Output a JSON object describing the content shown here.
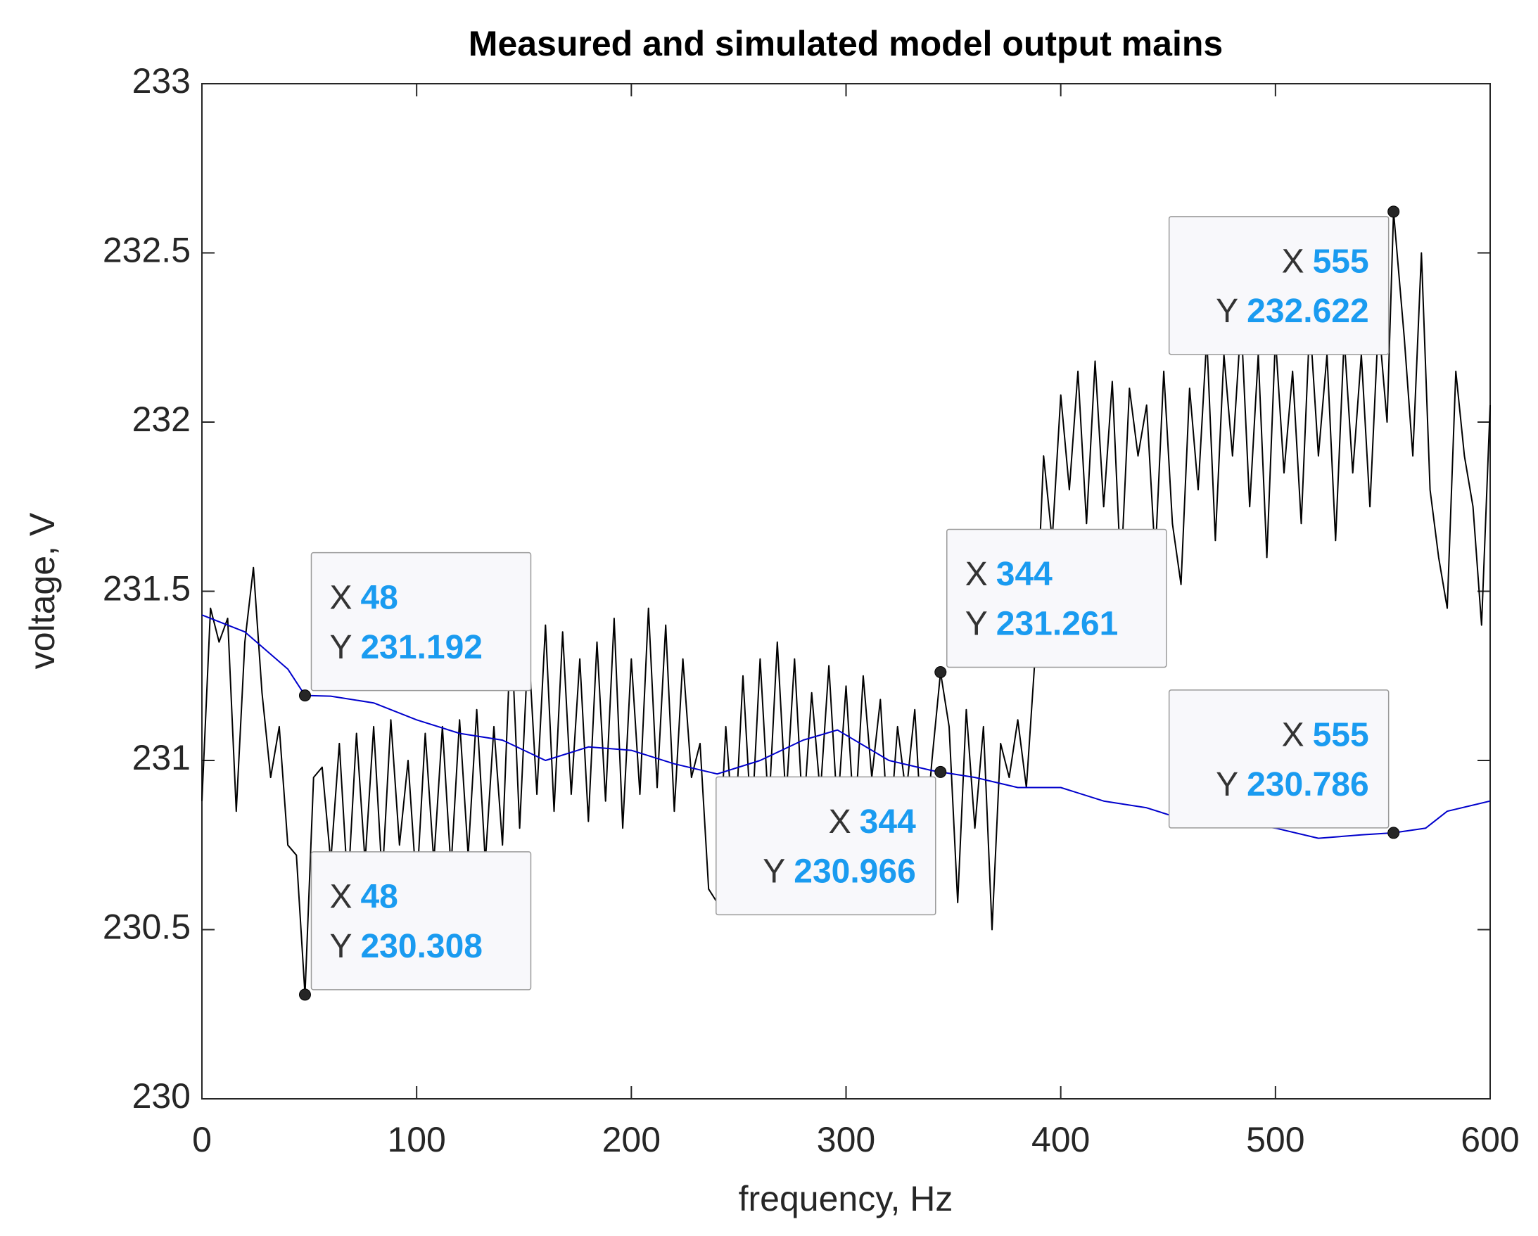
{
  "chart_data": {
    "type": "line",
    "title": "Measured and simulated model output mains",
    "xlabel": "frequency, Hz",
    "ylabel": "voltage, V",
    "xlim": [
      0,
      600
    ],
    "xticks": [
      0,
      100,
      200,
      300,
      400,
      500,
      600
    ],
    "ylim": [
      230,
      233
    ],
    "yticks": [
      230,
      230.5,
      231,
      231.5,
      232,
      232.5,
      233
    ],
    "grid": false,
    "series": [
      {
        "color": "#000000",
        "x": [
          0,
          4,
          8,
          12,
          16,
          20,
          24,
          28,
          32,
          36,
          40,
          44,
          48,
          52,
          56,
          60,
          64,
          68,
          72,
          76,
          80,
          84,
          88,
          92,
          96,
          100,
          104,
          108,
          112,
          116,
          120,
          124,
          128,
          132,
          136,
          140,
          144,
          148,
          152,
          156,
          160,
          164,
          168,
          172,
          176,
          180,
          184,
          188,
          192,
          196,
          200,
          204,
          208,
          212,
          216,
          220,
          224,
          228,
          232,
          236,
          240,
          244,
          248,
          252,
          256,
          260,
          264,
          268,
          272,
          276,
          280,
          284,
          288,
          292,
          296,
          300,
          304,
          308,
          312,
          316,
          320,
          324,
          328,
          332,
          336,
          340,
          344,
          348,
          352,
          356,
          360,
          364,
          368,
          372,
          376,
          380,
          384,
          388,
          392,
          396,
          400,
          404,
          408,
          412,
          416,
          420,
          424,
          428,
          432,
          436,
          440,
          444,
          448,
          452,
          456,
          460,
          464,
          468,
          472,
          476,
          480,
          484,
          488,
          492,
          496,
          500,
          504,
          508,
          512,
          516,
          520,
          524,
          528,
          532,
          536,
          540,
          544,
          548,
          552,
          555,
          560,
          564,
          568,
          572,
          576,
          580,
          584,
          588,
          592,
          596,
          600
        ],
        "values": [
          230.88,
          231.45,
          231.35,
          231.42,
          230.85,
          231.35,
          231.57,
          231.2,
          230.95,
          231.1,
          230.75,
          230.72,
          230.308,
          230.95,
          230.98,
          230.7,
          231.05,
          230.62,
          231.08,
          230.7,
          231.1,
          230.65,
          231.12,
          230.75,
          231.0,
          230.62,
          231.08,
          230.7,
          231.1,
          230.68,
          231.12,
          230.72,
          231.15,
          230.7,
          231.1,
          230.75,
          231.4,
          230.8,
          231.35,
          230.9,
          231.4,
          230.85,
          231.38,
          230.9,
          231.3,
          230.82,
          231.35,
          230.88,
          231.42,
          230.8,
          231.3,
          230.9,
          231.45,
          230.92,
          231.4,
          230.85,
          231.3,
          230.95,
          231.05,
          230.62,
          230.58,
          231.1,
          230.75,
          231.25,
          230.8,
          231.3,
          230.85,
          231.35,
          230.88,
          231.3,
          230.82,
          231.2,
          230.9,
          231.28,
          230.85,
          231.22,
          230.8,
          231.25,
          230.95,
          231.18,
          230.75,
          231.1,
          230.9,
          231.15,
          230.7,
          231.0,
          231.261,
          231.1,
          230.58,
          231.15,
          230.8,
          231.1,
          230.5,
          231.05,
          230.95,
          231.12,
          230.92,
          231.3,
          231.9,
          231.65,
          232.08,
          231.8,
          232.15,
          231.7,
          232.18,
          231.75,
          232.12,
          231.55,
          232.1,
          231.9,
          232.05,
          231.6,
          232.15,
          231.7,
          231.52,
          232.1,
          231.8,
          232.25,
          231.65,
          232.2,
          231.9,
          232.3,
          231.75,
          232.2,
          231.6,
          232.25,
          231.85,
          232.15,
          231.7,
          232.3,
          231.9,
          232.2,
          231.65,
          232.25,
          231.85,
          232.2,
          231.75,
          232.3,
          232.0,
          232.622,
          232.25,
          231.9,
          232.5,
          231.8,
          231.6,
          231.45,
          232.15,
          231.9,
          231.75,
          231.4,
          232.05
        ]
      },
      {
        "color": "#0000cc",
        "x": [
          0,
          20,
          40,
          48,
          60,
          80,
          100,
          120,
          140,
          160,
          180,
          200,
          220,
          240,
          260,
          280,
          296,
          320,
          340,
          344,
          360,
          380,
          400,
          420,
          440,
          460,
          480,
          500,
          520,
          540,
          555,
          570,
          580,
          600
        ],
        "values": [
          231.43,
          231.38,
          231.27,
          231.192,
          231.19,
          231.17,
          231.12,
          231.08,
          231.06,
          231.0,
          231.04,
          231.03,
          230.99,
          230.96,
          231.0,
          231.06,
          231.09,
          231.0,
          230.97,
          230.966,
          230.95,
          230.92,
          230.92,
          230.88,
          230.86,
          230.82,
          230.82,
          230.8,
          230.77,
          230.78,
          230.786,
          230.8,
          230.85,
          230.88
        ]
      }
    ],
    "annotations": [
      {
        "x_label": "X",
        "x": 48,
        "y_label": "Y",
        "y": 231.192
      },
      {
        "x_label": "X",
        "x": 48,
        "y_label": "Y",
        "y": 230.308
      },
      {
        "x_label": "X",
        "x": 344,
        "y_label": "Y",
        "y": 231.261
      },
      {
        "x_label": "X",
        "x": 344,
        "y_label": "Y",
        "y": 230.966
      },
      {
        "x_label": "X",
        "x": 555,
        "y_label": "Y",
        "y": 232.622
      },
      {
        "x_label": "X",
        "x": 555,
        "y_label": "Y",
        "y": 230.786
      }
    ]
  }
}
